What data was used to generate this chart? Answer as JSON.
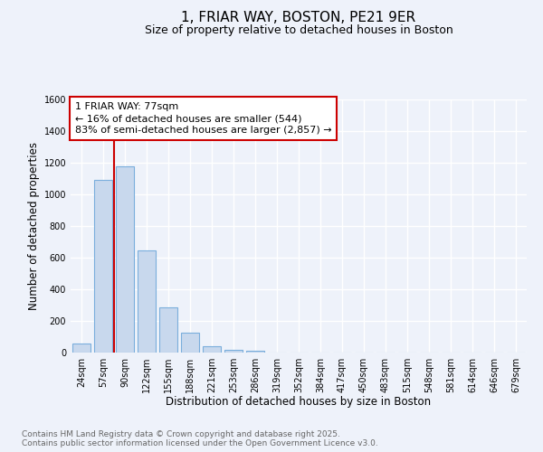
{
  "title": "1, FRIAR WAY, BOSTON, PE21 9ER",
  "subtitle": "Size of property relative to detached houses in Boston",
  "xlabel": "Distribution of detached houses by size in Boston",
  "ylabel": "Number of detached properties",
  "bar_labels": [
    "24sqm",
    "57sqm",
    "90sqm",
    "122sqm",
    "155sqm",
    "188sqm",
    "221sqm",
    "253sqm",
    "286sqm",
    "319sqm",
    "352sqm",
    "384sqm",
    "417sqm",
    "450sqm",
    "483sqm",
    "515sqm",
    "548sqm",
    "581sqm",
    "614sqm",
    "646sqm",
    "679sqm"
  ],
  "bar_values": [
    60,
    1090,
    1175,
    645,
    285,
    125,
    40,
    20,
    10,
    0,
    0,
    0,
    0,
    0,
    0,
    0,
    0,
    0,
    0,
    0,
    0
  ],
  "bar_color": "#c8d8ed",
  "bar_edge_color": "#7aaedc",
  "vline_index": 1.5,
  "vline_color": "#cc0000",
  "ylim": [
    0,
    1600
  ],
  "yticks": [
    0,
    200,
    400,
    600,
    800,
    1000,
    1200,
    1400,
    1600
  ],
  "annotation_title": "1 FRIAR WAY: 77sqm",
  "annotation_line1": "← 16% of detached houses are smaller (544)",
  "annotation_line2": "83% of semi-detached houses are larger (2,857) →",
  "annotation_box_color": "#ffffff",
  "annotation_box_edge": "#cc0000",
  "footer_line1": "Contains HM Land Registry data © Crown copyright and database right 2025.",
  "footer_line2": "Contains public sector information licensed under the Open Government Licence v3.0.",
  "background_color": "#eef2fa",
  "grid_color": "#ffffff",
  "title_fontsize": 11,
  "subtitle_fontsize": 9,
  "axis_label_fontsize": 8.5,
  "tick_fontsize": 7,
  "footer_fontsize": 6.5,
  "annotation_fontsize": 8
}
